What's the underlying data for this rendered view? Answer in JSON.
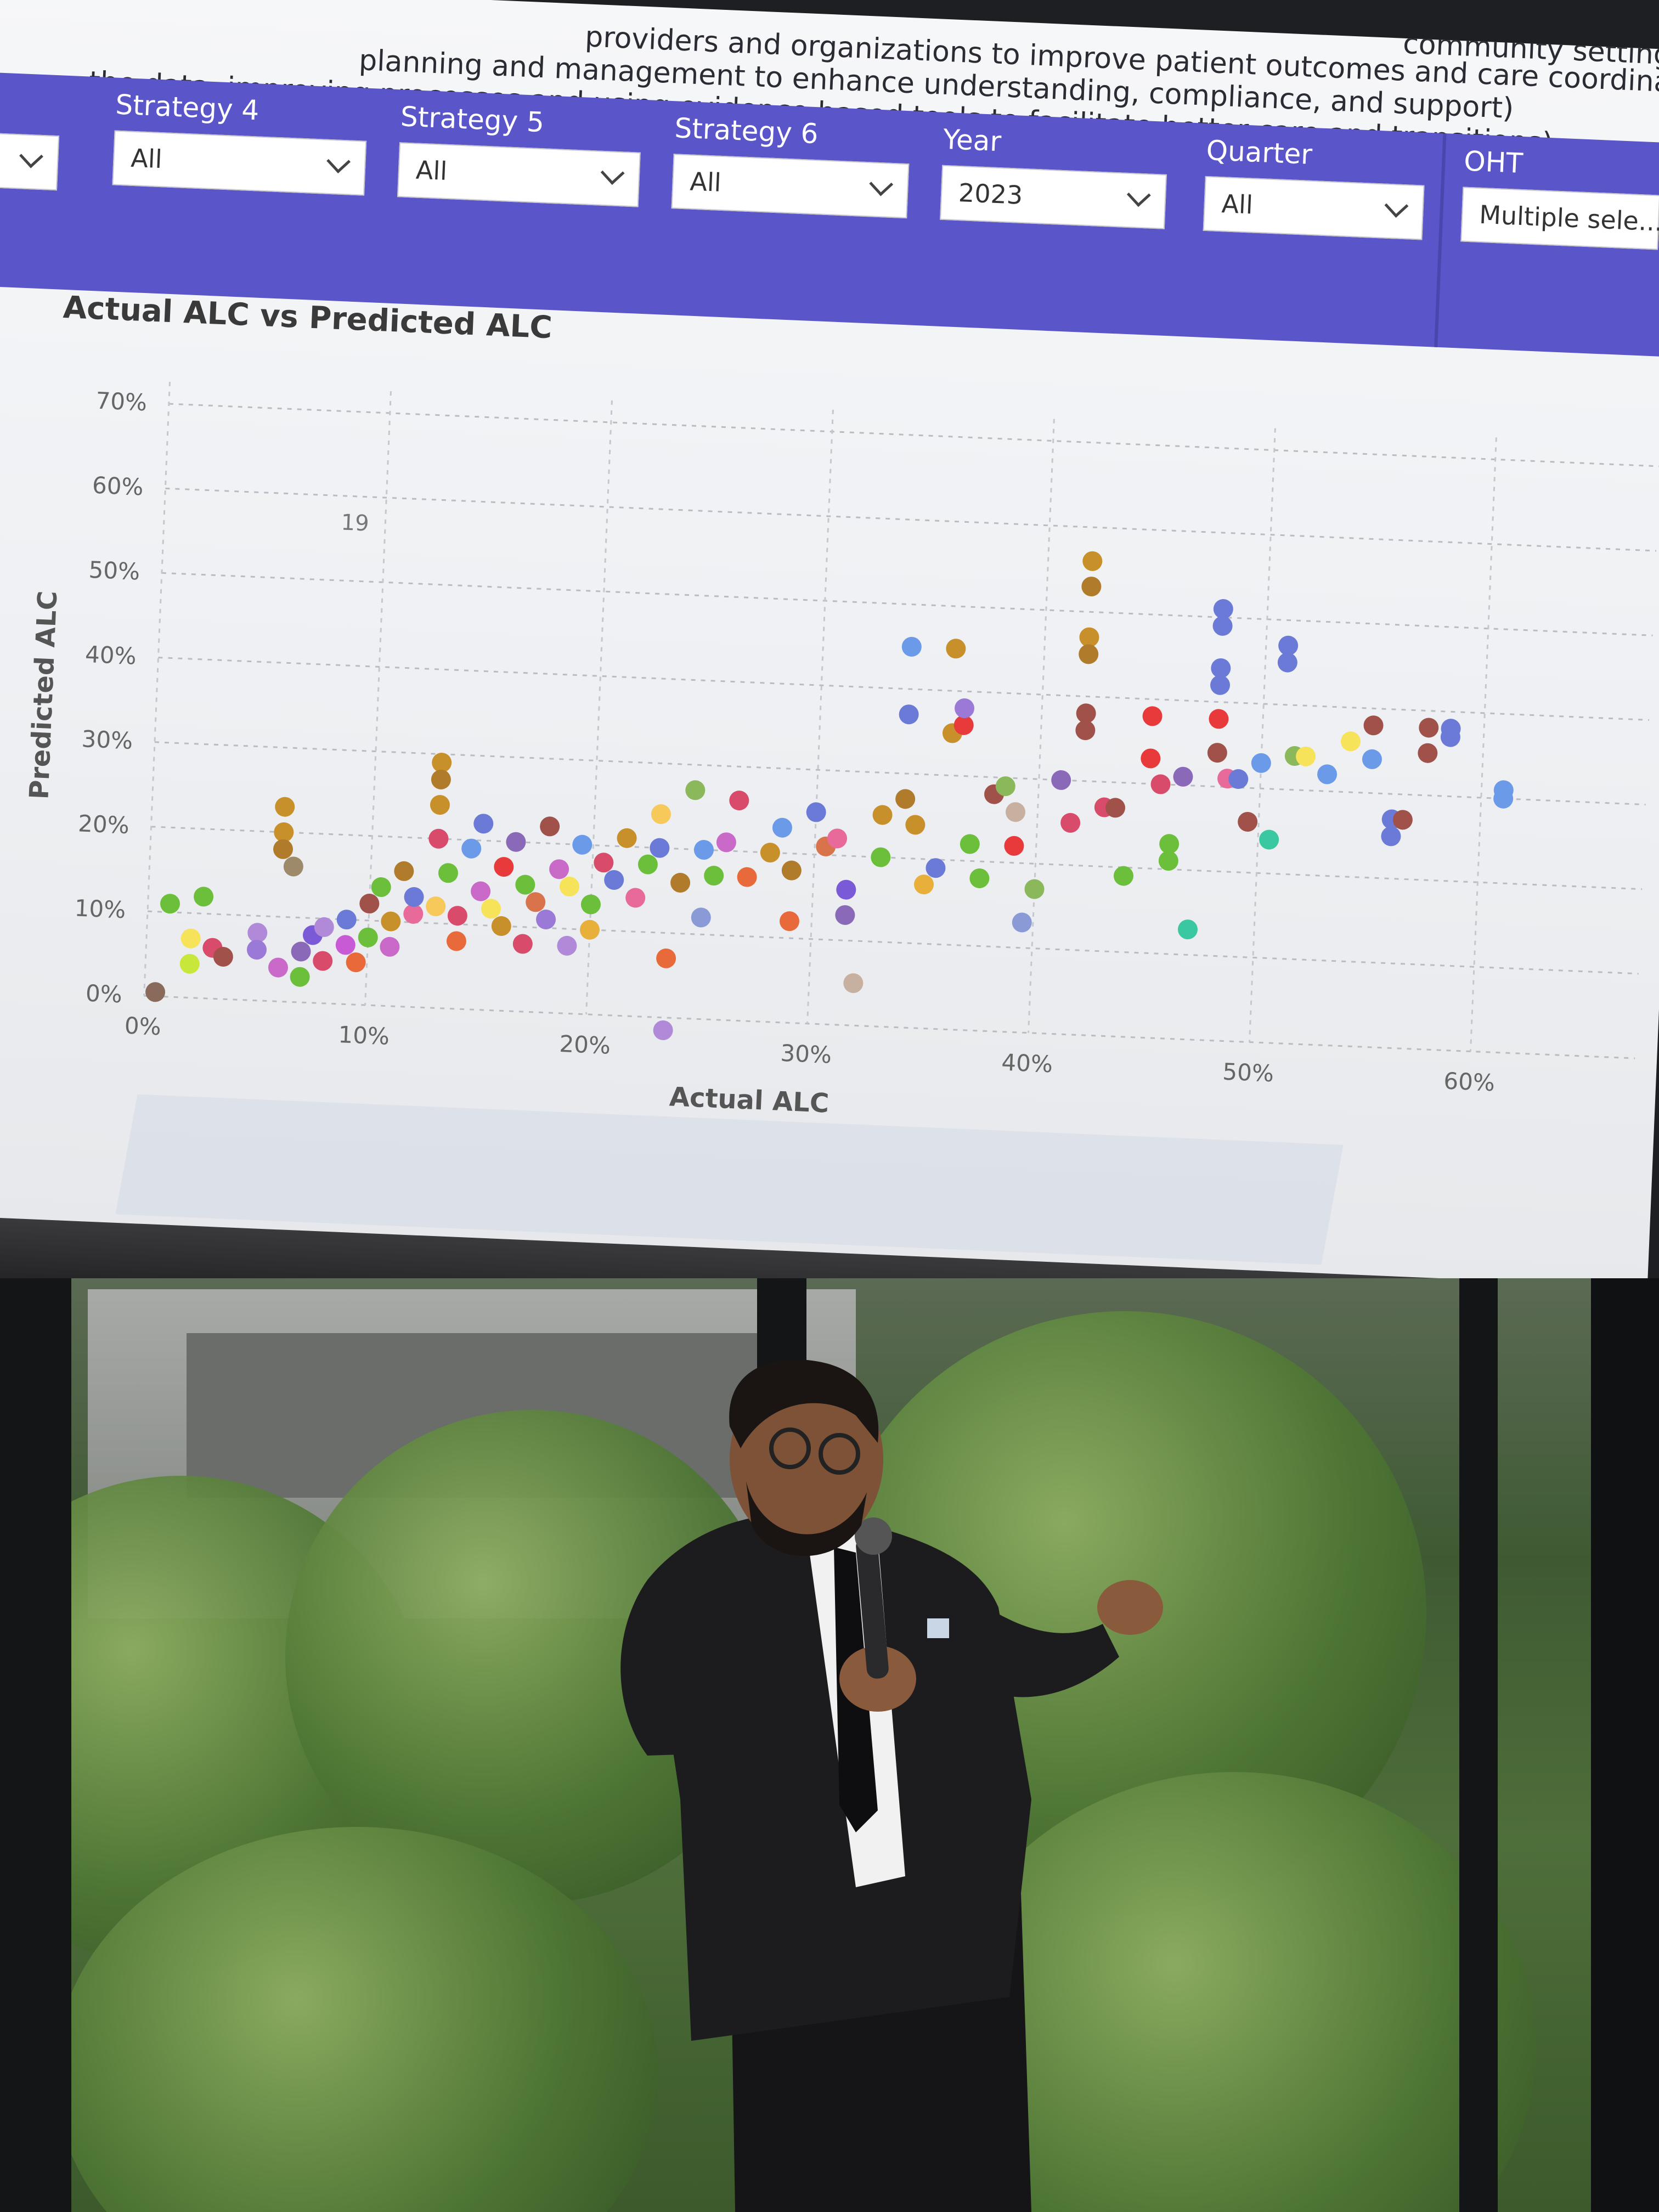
{
  "screen": {
    "header_lines": [
      "providers and organizations to improve patient outcomes and care coordinatio",
      "planning and management to enhance understanding, compliance, and support)",
      "the data, improving processes and using evidence based tools to facilitate better care and transitions)",
      "community settings)"
    ],
    "filters": [
      {
        "label": "",
        "value": ""
      },
      {
        "label": "Strategy 4",
        "value": "All"
      },
      {
        "label": "Strategy 5",
        "value": "All"
      },
      {
        "label": "Strategy 6",
        "value": "All"
      },
      {
        "label": "Year",
        "value": "2023"
      },
      {
        "label": "Quarter",
        "value": "All"
      },
      {
        "label": "OHT",
        "value": "Multiple sele..."
      }
    ],
    "chart_title": "Actual ALC vs Predicted ALC"
  },
  "chart_data": {
    "type": "scatter",
    "title": "Actual ALC vs Predicted ALC",
    "xlabel": "Actual ALC",
    "ylabel": "Predicted ALC",
    "xlim": [
      0,
      60
    ],
    "ylim": [
      0,
      70
    ],
    "x_ticks": [
      "0%",
      "10%",
      "20%",
      "30%",
      "40%",
      "50%",
      "60%"
    ],
    "y_ticks": [
      "0%",
      "10%",
      "20%",
      "30%",
      "40%",
      "50%",
      "60%",
      "70%"
    ],
    "annotation": "19",
    "grid": true,
    "points": [
      [
        0.5,
        0.5,
        "#8a6a5a"
      ],
      [
        1,
        11,
        "#6cbf3a"
      ],
      [
        2,
        7,
        "#f7e35a"
      ],
      [
        2.5,
        12,
        "#6cbf3a"
      ],
      [
        2,
        4,
        "#c7e83a"
      ],
      [
        3,
        6,
        "#d94b6b"
      ],
      [
        3.5,
        5,
        "#a0524a"
      ],
      [
        5,
        8,
        "#b08ad8"
      ],
      [
        5,
        6,
        "#9a7ad6"
      ],
      [
        6,
        23,
        "#c8902a"
      ],
      [
        6,
        20,
        "#c8902a"
      ],
      [
        6,
        18,
        "#b07b2a"
      ],
      [
        6.5,
        16,
        "#9c8a6a"
      ],
      [
        6,
        4,
        "#c96ac9"
      ],
      [
        7,
        6,
        "#8a6ab8"
      ],
      [
        7,
        3,
        "#6cbf3a"
      ],
      [
        7.5,
        8,
        "#7a5ad6"
      ],
      [
        8,
        5,
        "#d94b6b"
      ],
      [
        8,
        9,
        "#b08ad8"
      ],
      [
        9,
        7,
        "#c95ad6"
      ],
      [
        9,
        10,
        "#6a7ad6"
      ],
      [
        9.5,
        5,
        "#e86a3a"
      ],
      [
        10,
        8,
        "#6cbf3a"
      ],
      [
        10,
        12,
        "#a0524a"
      ],
      [
        10.5,
        14,
        "#6cbf3a"
      ],
      [
        11,
        10,
        "#c8902a"
      ],
      [
        11,
        7,
        "#c96ac9"
      ],
      [
        11.5,
        16,
        "#b07b2a"
      ],
      [
        12,
        11,
        "#e86a9a"
      ],
      [
        12,
        13,
        "#6a7ad6"
      ],
      [
        13,
        29,
        "#c8902a"
      ],
      [
        13,
        27,
        "#b07b2a"
      ],
      [
        13,
        24,
        "#c8902a"
      ],
      [
        13,
        20,
        "#d94b6b"
      ],
      [
        13,
        12,
        "#f7c85a"
      ],
      [
        13.5,
        16,
        "#6cbf3a"
      ],
      [
        14,
        8,
        "#e86a3a"
      ],
      [
        14,
        11,
        "#d94b6b"
      ],
      [
        14.5,
        19,
        "#6a9ae8"
      ],
      [
        15,
        14,
        "#c96ac9"
      ],
      [
        15,
        22,
        "#6a7ad6"
      ],
      [
        15.5,
        12,
        "#f7e35a"
      ],
      [
        16,
        17,
        "#e83a3a"
      ],
      [
        16,
        10,
        "#c8902a"
      ],
      [
        16.5,
        20,
        "#8a6ab8"
      ],
      [
        17,
        15,
        "#6cbf3a"
      ],
      [
        17,
        8,
        "#d94b6b"
      ],
      [
        17.5,
        13,
        "#d9734b"
      ],
      [
        18,
        22,
        "#a0524a"
      ],
      [
        18,
        11,
        "#9a7ad6"
      ],
      [
        18.5,
        17,
        "#c96ac9"
      ],
      [
        19,
        8,
        "#b08ad8"
      ],
      [
        19,
        15,
        "#f7e35a"
      ],
      [
        19.5,
        20,
        "#6a9ae8"
      ],
      [
        20,
        13,
        "#6cbf3a"
      ],
      [
        20,
        10,
        "#e8b03a"
      ],
      [
        20.5,
        18,
        "#d94b6b"
      ],
      [
        21,
        16,
        "#6a7ad6"
      ],
      [
        21.5,
        21,
        "#c8902a"
      ],
      [
        22,
        14,
        "#e86a9a"
      ],
      [
        22.5,
        18,
        "#6cbf3a"
      ],
      [
        23,
        24,
        "#f7c85a"
      ],
      [
        23,
        20,
        "#6a7ad6"
      ],
      [
        23.5,
        7,
        "#e86a3a"
      ],
      [
        23.5,
        -1.5,
        "#b08ad8"
      ],
      [
        24,
        16,
        "#b07b2a"
      ],
      [
        24.5,
        27,
        "#8ab85a"
      ],
      [
        25,
        20,
        "#6a9ae8"
      ],
      [
        25,
        12,
        "#8a9ad6"
      ],
      [
        25.5,
        17,
        "#6cbf3a"
      ],
      [
        26,
        21,
        "#c96ac9"
      ],
      [
        26.5,
        26,
        "#d94b6b"
      ],
      [
        27,
        17,
        "#e86a3a"
      ],
      [
        28,
        20,
        "#c8902a"
      ],
      [
        28.5,
        23,
        "#6a9ae8"
      ],
      [
        29,
        18,
        "#b07b2a"
      ],
      [
        29,
        12,
        "#e86a3a"
      ],
      [
        30,
        25,
        "#6a7ad6"
      ],
      [
        30.5,
        21,
        "#d9734b"
      ],
      [
        31,
        22,
        "#e86a9a"
      ],
      [
        31.5,
        16,
        "#7a5ad6"
      ],
      [
        31.5,
        13,
        "#8a6ab8"
      ],
      [
        32,
        5,
        "#c8b0a0"
      ],
      [
        33,
        25,
        "#c8902a"
      ],
      [
        33,
        20,
        "#6cbf3a"
      ],
      [
        34,
        45,
        "#6a9ae8"
      ],
      [
        34,
        37,
        "#6a7ad6"
      ],
      [
        34,
        27,
        "#b07b2a"
      ],
      [
        34.5,
        24,
        "#c8902a"
      ],
      [
        35,
        17,
        "#e8b03a"
      ],
      [
        35.5,
        19,
        "#6a7ad6"
      ],
      [
        36,
        45,
        "#c8902a"
      ],
      [
        36,
        35,
        "#c8902a"
      ],
      [
        36.5,
        36,
        "#e83a3a"
      ],
      [
        36.5,
        38,
        "#9a7ad6"
      ],
      [
        37,
        22,
        "#6cbf3a"
      ],
      [
        37.5,
        18,
        "#6cbf3a"
      ],
      [
        38,
        28,
        "#a0524a"
      ],
      [
        38.5,
        29,
        "#8ab85a"
      ],
      [
        39,
        26,
        "#c8b0a0"
      ],
      [
        39,
        22,
        "#e83a3a"
      ],
      [
        39.5,
        13,
        "#8a9ad6"
      ],
      [
        40,
        17,
        "#8ab85a"
      ],
      [
        41,
        30,
        "#8a6ab8"
      ],
      [
        41.5,
        25,
        "#d94b6b"
      ],
      [
        42,
        56,
        "#c8902a"
      ],
      [
        42,
        53,
        "#b07b2a"
      ],
      [
        42,
        47,
        "#c8902a"
      ],
      [
        42,
        45,
        "#b07b2a"
      ],
      [
        42,
        38,
        "#a0524a"
      ],
      [
        42,
        36,
        "#a0524a"
      ],
      [
        43,
        27,
        "#d94b6b"
      ],
      [
        43.5,
        27,
        "#a0524a"
      ],
      [
        44,
        19,
        "#6cbf3a"
      ],
      [
        45,
        38,
        "#e83a3a"
      ],
      [
        45,
        33,
        "#e83a3a"
      ],
      [
        45.5,
        30,
        "#d94b6b"
      ],
      [
        46,
        21,
        "#6cbf3a"
      ],
      [
        46,
        23,
        "#6cbf3a"
      ],
      [
        46.5,
        31,
        "#8a6ab8"
      ],
      [
        47,
        13,
        "#3ac8a0"
      ],
      [
        48,
        51,
        "#6a7ad6"
      ],
      [
        48,
        49,
        "#6a7ad6"
      ],
      [
        48,
        44,
        "#6a7ad6"
      ],
      [
        48,
        42,
        "#6a7ad6"
      ],
      [
        48,
        38,
        "#e83a3a"
      ],
      [
        48,
        34,
        "#a0524a"
      ],
      [
        48.5,
        31,
        "#e86a9a"
      ],
      [
        49,
        31,
        "#6a7ad6"
      ],
      [
        49.5,
        26,
        "#a0524a"
      ],
      [
        50,
        33,
        "#6a9ae8"
      ],
      [
        50.5,
        24,
        "#3ac8a0"
      ],
      [
        51,
        47,
        "#6a7ad6"
      ],
      [
        51,
        45,
        "#6a7ad6"
      ],
      [
        51.5,
        34,
        "#8ab85a"
      ],
      [
        52,
        34,
        "#f7e35a"
      ],
      [
        53,
        32,
        "#6a9ae8"
      ],
      [
        54,
        36,
        "#f7e35a"
      ],
      [
        55,
        38,
        "#a0524a"
      ],
      [
        55,
        34,
        "#6a9ae8"
      ],
      [
        56,
        27,
        "#6a7ad6"
      ],
      [
        56,
        25,
        "#6a7ad6"
      ],
      [
        56.5,
        27,
        "#a0524a"
      ],
      [
        57.5,
        38,
        "#a0524a"
      ],
      [
        57.5,
        35,
        "#a0524a"
      ],
      [
        58.5,
        38,
        "#6a7ad6"
      ],
      [
        58.5,
        37,
        "#6a7ad6"
      ],
      [
        61,
        31,
        "#6a9ae8"
      ],
      [
        61,
        30,
        "#6a9ae8"
      ]
    ]
  },
  "colors": {
    "filter_bar": "#5a55c8",
    "screen_bg": "#f3f4f6",
    "suit": "#1a1a1c"
  }
}
